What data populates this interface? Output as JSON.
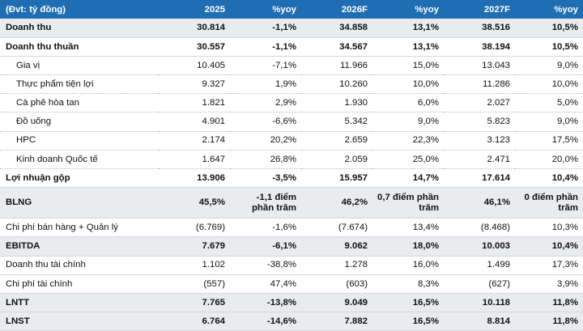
{
  "header": [
    "(Đvt: tỷ đồng)",
    "2025",
    "%yoy",
    "2026F",
    "%yoy",
    "2027F",
    "%yoy"
  ],
  "rows": [
    {
      "cells": [
        "Doanh thu",
        "30.814",
        "-1,1%",
        "34.858",
        "13,1%",
        "38.516",
        "10,5%"
      ],
      "style": "bold shade"
    },
    {
      "cells": [
        "Doanh thu thuần",
        "30.557",
        "-1,1%",
        "34.567",
        "13,1%",
        "38.194",
        "10,5%"
      ],
      "style": "bold"
    },
    {
      "cells": [
        "Gia vị",
        "10.405",
        "-7,1%",
        "11.966",
        "15,0%",
        "13.043",
        "9,0%"
      ],
      "style": "sub"
    },
    {
      "cells": [
        "Thực phẩm tiện lợi",
        "9.327",
        "1,9%",
        "10.260",
        "10,0%",
        "11.286",
        "10,0%"
      ],
      "style": "sub"
    },
    {
      "cells": [
        "Cà phê hòa tan",
        "1.821",
        "2,9%",
        "1.930",
        "6,0%",
        "2.027",
        "5,0%"
      ],
      "style": "sub"
    },
    {
      "cells": [
        "Đồ uống",
        "4.901",
        "-6,6%",
        "5.342",
        "9,0%",
        "5.823",
        "9,0%"
      ],
      "style": "sub"
    },
    {
      "cells": [
        "HPC",
        "2.174",
        "20,2%",
        "2.659",
        "22,3%",
        "3.123",
        "17,5%"
      ],
      "style": "sub"
    },
    {
      "cells": [
        "Kinh doanh Quốc tế",
        "1.647",
        "26,8%",
        "2.059",
        "25,0%",
        "2.471",
        "20,0%"
      ],
      "style": "sub"
    },
    {
      "cells": [
        "Lợi nhuận gộp",
        "13.906",
        "-3,5%",
        "15.957",
        "14,7%",
        "17.614",
        "10,4%"
      ],
      "style": "bold"
    },
    {
      "cells": [
        "BLNG",
        "45,5%",
        "-1,1 điểm phần trăm",
        "46,2%",
        "0,7 điểm phần trăm",
        "46,1%",
        "0 điểm phần trăm"
      ],
      "style": "bold shade tall"
    },
    {
      "cells": [
        "Chi phí bán hàng + Quản lý",
        "(6.769)",
        "-1,6%",
        "(7.674)",
        "13,4%",
        "(8.468)",
        "10,3%"
      ],
      "style": ""
    },
    {
      "cells": [
        "EBITDA",
        "7.679",
        "-6,1%",
        "9.062",
        "18,0%",
        "10.003",
        "10,4%"
      ],
      "style": "bold shade"
    },
    {
      "cells": [
        "Doanh thu tài chính",
        "1.102",
        "-38,8%",
        "1.278",
        "16,0%",
        "1.499",
        "17,3%"
      ],
      "style": ""
    },
    {
      "cells": [
        "Chi phí tài chính",
        "(557)",
        "47,4%",
        "(603)",
        "8,3%",
        "(627)",
        "3,9%"
      ],
      "style": ""
    },
    {
      "cells": [
        "LNTT",
        "7.765",
        "-13,8%",
        "9.049",
        "16,5%",
        "10.118",
        "11,8%"
      ],
      "style": "bold shade"
    },
    {
      "cells": [
        "LNST",
        "6.764",
        "-14,6%",
        "7.882",
        "16,5%",
        "8.814",
        "11,8%"
      ],
      "style": "bold shade"
    }
  ]
}
